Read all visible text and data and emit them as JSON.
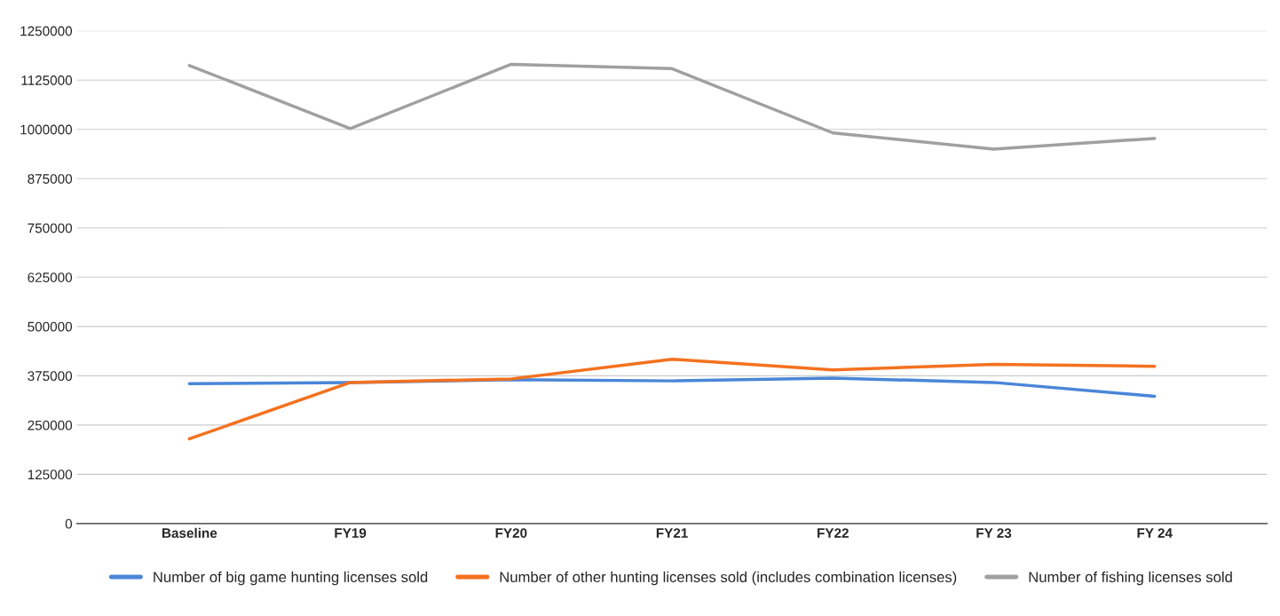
{
  "chart_data": {
    "type": "line",
    "categories": [
      "Baseline",
      "FY19",
      "FY20",
      "FY21",
      "FY22",
      "FY 23",
      "FY 24"
    ],
    "series": [
      {
        "name": "Number of big game hunting licenses sold",
        "color": "#4a86d8",
        "values": [
          355000,
          358000,
          365000,
          362000,
          369000,
          358000,
          323000
        ]
      },
      {
        "name": "Number of other hunting licenses sold (includes combination licenses)",
        "color": "#f4711f",
        "values": [
          215000,
          358000,
          367000,
          417000,
          390000,
          404000,
          399000
        ]
      },
      {
        "name": "Number of fishing licenses sold",
        "color": "#a0a0a0",
        "values": [
          1162000,
          1002000,
          1165000,
          1154000,
          991000,
          950000,
          977000
        ]
      }
    ],
    "ylim": [
      0,
      1250000
    ],
    "yticks": [
      0,
      125000,
      250000,
      375000,
      500000,
      625000,
      750000,
      875000,
      1000000,
      1125000,
      1250000
    ],
    "grid": "y",
    "legend": "bottom",
    "marker": "none",
    "line_style": "solid"
  }
}
